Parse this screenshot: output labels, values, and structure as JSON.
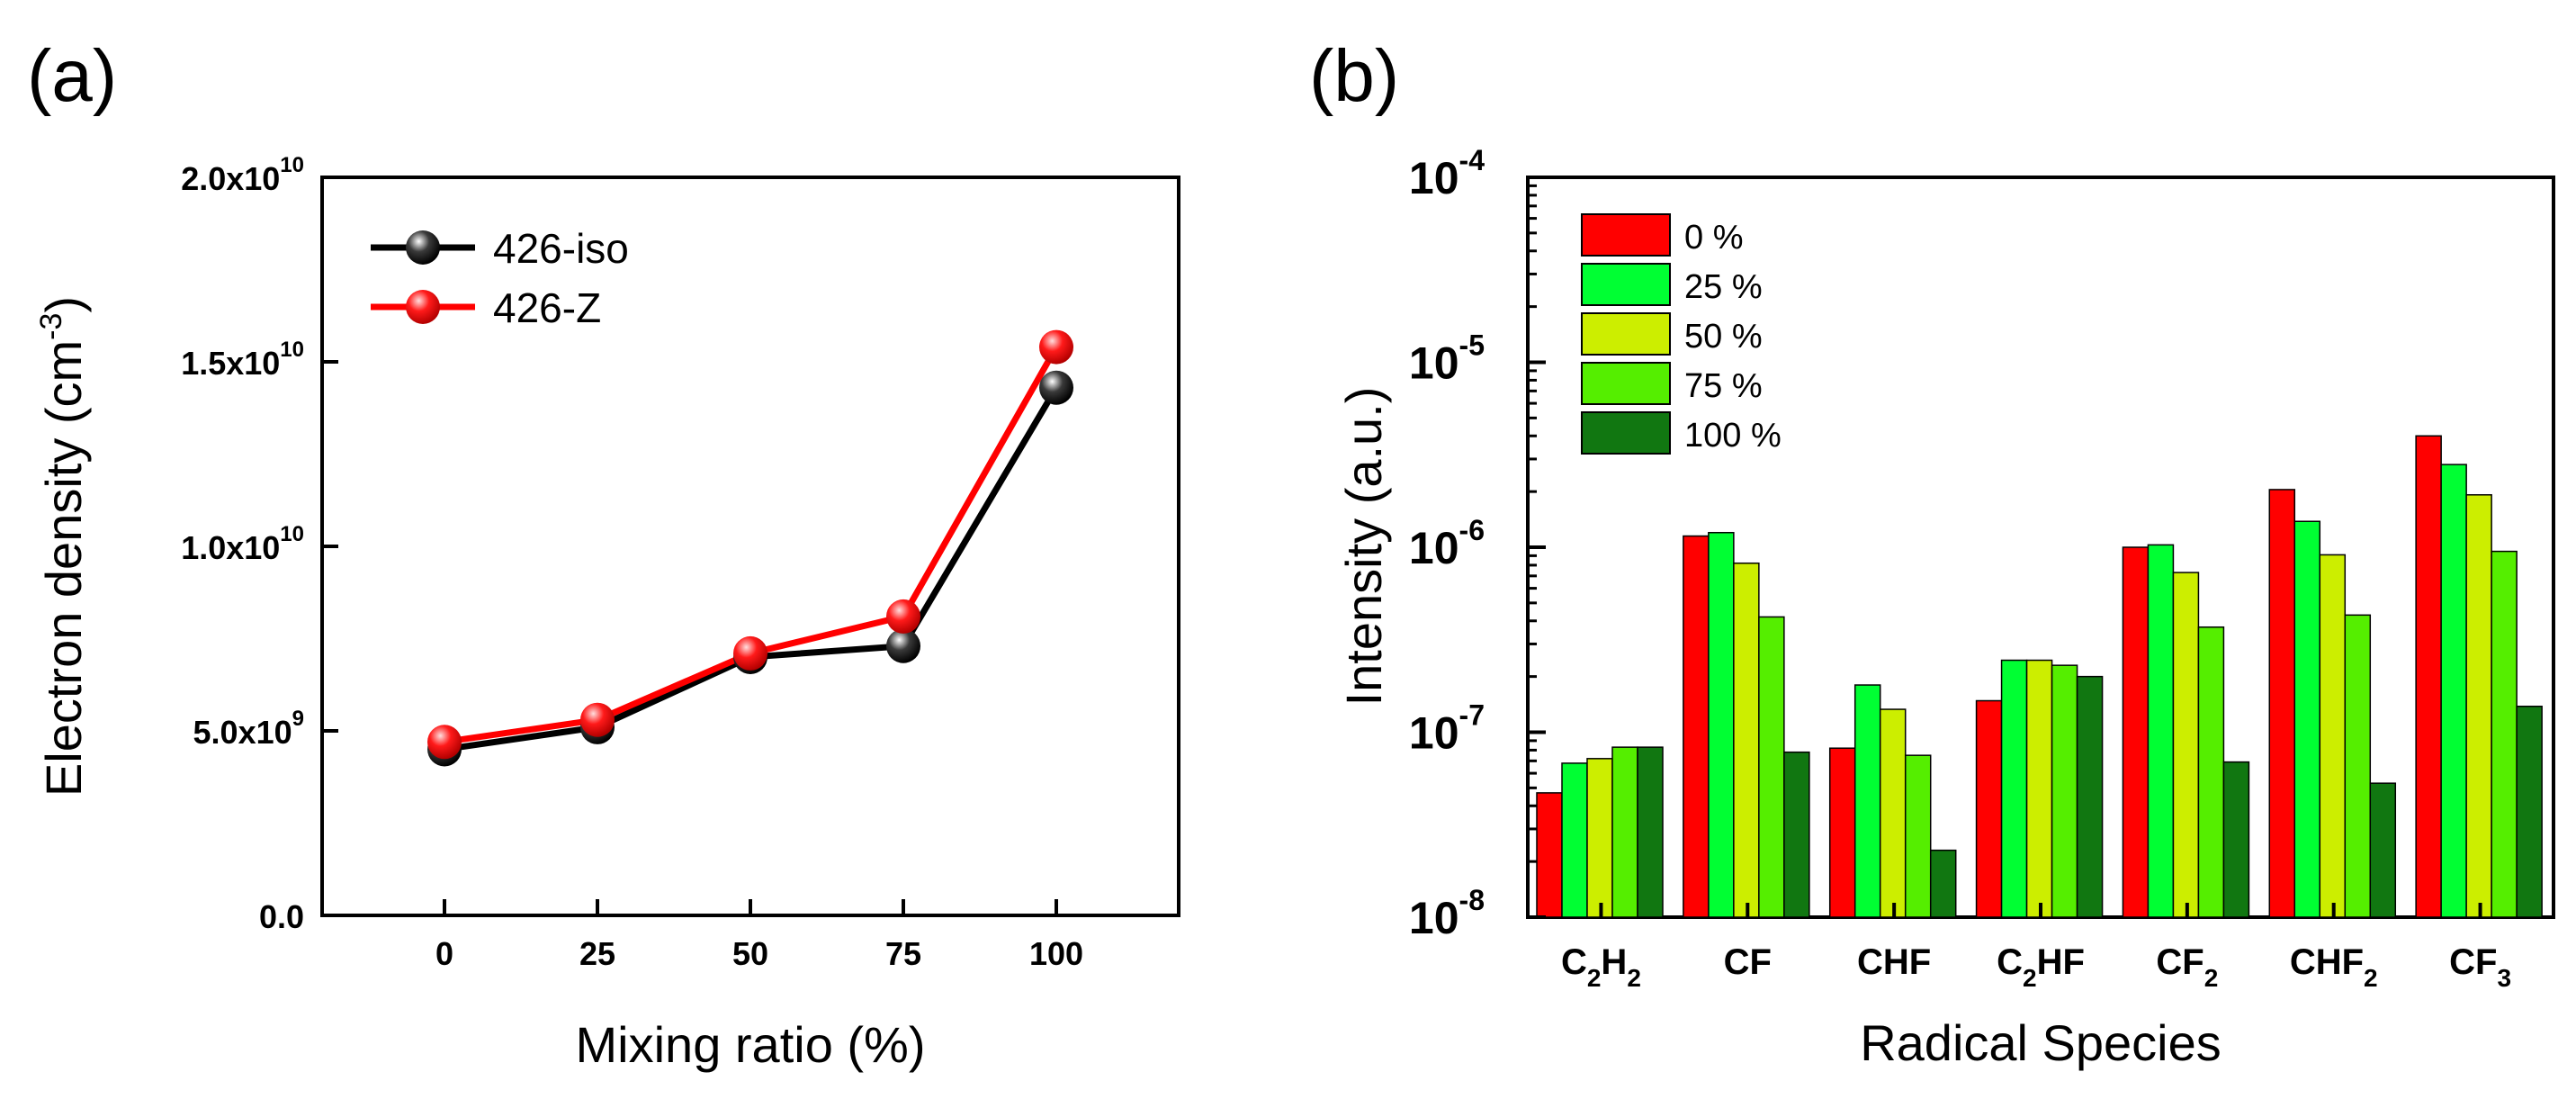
{
  "chart_data": [
    {
      "panel_label": "(a)",
      "type": "line",
      "xlabel": "Mixing ratio (%)",
      "ylabel_main": "Electron density (cm",
      "ylabel_sup": "-3",
      "ylabel_end": ")",
      "x": [
        0,
        25,
        50,
        75,
        100
      ],
      "x_ticks": [
        {
          "label": "0",
          "value": 0
        },
        {
          "label": "25",
          "value": 25
        },
        {
          "label": "50",
          "value": 50
        },
        {
          "label": "75",
          "value": 75
        },
        {
          "label": "100",
          "value": 100
        }
      ],
      "xlim": [
        -20,
        120
      ],
      "ylim": [
        0,
        20000000000
      ],
      "y_ticks": [
        {
          "mant": "0.0",
          "exp": "",
          "value": 0
        },
        {
          "mant": "5.0x10",
          "exp": "9",
          "value": 5000000000
        },
        {
          "mant": "1.0x10",
          "exp": "10",
          "value": 10000000000
        },
        {
          "mant": "1.5x10",
          "exp": "10",
          "value": 15000000000
        },
        {
          "mant": "2.0x10",
          "exp": "10",
          "value": 20000000000
        }
      ],
      "legend_position": "top-left",
      "series": [
        {
          "name": "426-iso",
          "color": "#000000",
          "values": [
            4500000000,
            5100000000,
            7000000000,
            7300000000,
            14300000000
          ]
        },
        {
          "name": "426-Z",
          "color": "#ff0000",
          "values": [
            4700000000,
            5300000000,
            7100000000,
            8100000000,
            15400000000
          ]
        }
      ]
    },
    {
      "panel_label": "(b)",
      "type": "bar",
      "xlabel": "Radical Species",
      "ylabel": "Intensity (a.u.)",
      "y_scale": "log",
      "ylim": [
        1e-08,
        0.0001
      ],
      "y_ticks": [
        {
          "base": "10",
          "exp": "-8",
          "value": 1e-08
        },
        {
          "base": "10",
          "exp": "-7",
          "value": 1e-07
        },
        {
          "base": "10",
          "exp": "-6",
          "value": 1e-06
        },
        {
          "base": "10",
          "exp": "-5",
          "value": 1e-05
        },
        {
          "base": "10",
          "exp": "-4",
          "value": 0.0001
        }
      ],
      "categories": [
        {
          "label": "C2H2",
          "parts": [
            [
              "C",
              ""
            ],
            [
              "2",
              "sub"
            ],
            [
              "H",
              ""
            ],
            [
              "2",
              "sub"
            ]
          ]
        },
        {
          "label": "CF",
          "parts": [
            [
              "CF",
              ""
            ]
          ]
        },
        {
          "label": "CHF",
          "parts": [
            [
              "CHF",
              ""
            ]
          ]
        },
        {
          "label": "C2HF",
          "parts": [
            [
              "C",
              ""
            ],
            [
              "2",
              "sub"
            ],
            [
              "HF",
              ""
            ]
          ]
        },
        {
          "label": "CF2",
          "parts": [
            [
              "CF",
              ""
            ],
            [
              "2",
              "sub"
            ]
          ]
        },
        {
          "label": "CHF2",
          "parts": [
            [
              "CHF",
              ""
            ],
            [
              "2",
              "sub"
            ]
          ]
        },
        {
          "label": "CF3",
          "parts": [
            [
              "CF",
              ""
            ],
            [
              "3",
              "sub"
            ]
          ]
        }
      ],
      "legend_position": "top-left",
      "series": [
        {
          "name": "0 %",
          "color": "#ff0000",
          "values": [
            4.7e-08,
            1.15e-06,
            8.2e-08,
            1.48e-07,
            1e-06,
            2.05e-06,
            4e-06
          ]
        },
        {
          "name": "25 %",
          "color": "#00ff33",
          "values": [
            6.8e-08,
            1.2e-06,
            1.8e-07,
            2.45e-07,
            1.03e-06,
            1.38e-06,
            2.8e-06
          ]
        },
        {
          "name": "50 %",
          "color": "#ccee00",
          "values": [
            7.2e-08,
            8.2e-07,
            1.33e-07,
            2.45e-07,
            7.3e-07,
            9.1e-07,
            1.92e-06
          ]
        },
        {
          "name": "75 %",
          "color": "#55ee00",
          "values": [
            8.3e-08,
            4.2e-07,
            7.5e-08,
            2.3e-07,
            3.7e-07,
            4.3e-07,
            9.5e-07
          ]
        },
        {
          "name": "100 %",
          "color": "#117711",
          "values": [
            8.3e-08,
            7.8e-08,
            2.3e-08,
            2e-07,
            6.9e-08,
            5.3e-08,
            1.38e-07
          ]
        }
      ]
    }
  ]
}
